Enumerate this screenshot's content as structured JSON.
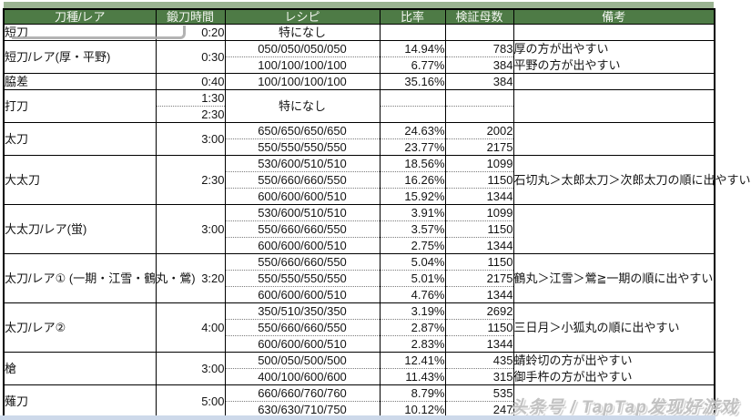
{
  "colors": {
    "header_bg": "#4e7b46",
    "header_text": "#f3f6f0",
    "top_strip": "#9bb492",
    "bottom_strip": "#cdd9ea",
    "grid_border": "#000000",
    "dotted_border": "#7c7c7c",
    "watermark_text": "#bdbdbd"
  },
  "watermark": {
    "text": "头条号 / TapTap发现好游戏"
  },
  "table": {
    "headers": [
      "刀種/レア",
      "鍛刀時間",
      "レシピ",
      "比率",
      "検証母数",
      "備考"
    ],
    "rows": [
      {
        "gs": true,
        "cells": [
          {
            "c": "type",
            "t": "短刀"
          },
          {
            "c": "time",
            "t": "0:20"
          },
          {
            "c": "recipe",
            "t": "特になし"
          },
          {
            "c": "ratio",
            "t": ""
          },
          {
            "c": "count",
            "t": ""
          },
          {
            "c": "note",
            "t": ""
          }
        ]
      },
      {
        "gs": true,
        "cells": [
          {
            "c": "type",
            "t": "短刀/レア(厚・平野)",
            "rs": 2
          },
          {
            "c": "time",
            "t": "0:30",
            "rs": 2
          },
          {
            "c": "recipe",
            "t": "050/050/050/050"
          },
          {
            "c": "ratio",
            "t": "14.94%"
          },
          {
            "c": "count",
            "t": "783"
          },
          {
            "c": "note",
            "t": "厚の方が出やすい"
          }
        ]
      },
      {
        "cells": [
          {
            "c": "recipe",
            "t": "100/100/100/100"
          },
          {
            "c": "ratio",
            "t": "6.77%"
          },
          {
            "c": "count",
            "t": "384"
          },
          {
            "c": "note",
            "t": "平野の方が出やすい"
          }
        ]
      },
      {
        "gs": true,
        "cells": [
          {
            "c": "type",
            "t": "脇差"
          },
          {
            "c": "time",
            "t": "0:40"
          },
          {
            "c": "recipe",
            "t": "100/100/100/100"
          },
          {
            "c": "ratio",
            "t": "35.16%"
          },
          {
            "c": "count",
            "t": "384"
          },
          {
            "c": "note",
            "t": ""
          }
        ]
      },
      {
        "gs": true,
        "cells": [
          {
            "c": "type",
            "t": "打刀",
            "rs": 2
          },
          {
            "c": "time",
            "t": "1:30"
          },
          {
            "c": "recipe",
            "t": "特になし",
            "rs": 2,
            "mid": true
          },
          {
            "c": "ratio",
            "t": ""
          },
          {
            "c": "count",
            "t": ""
          },
          {
            "c": "note",
            "t": "",
            "rs": 2
          }
        ]
      },
      {
        "cells": [
          {
            "c": "time",
            "t": "2:30"
          },
          {
            "c": "ratio",
            "t": ""
          },
          {
            "c": "count",
            "t": ""
          }
        ]
      },
      {
        "gs": true,
        "cells": [
          {
            "c": "type",
            "t": "太刀",
            "rs": 2
          },
          {
            "c": "time",
            "t": "3:00",
            "rs": 2
          },
          {
            "c": "recipe",
            "t": "650/650/650/650"
          },
          {
            "c": "ratio",
            "t": "24.63%"
          },
          {
            "c": "count",
            "t": "2002"
          },
          {
            "c": "note",
            "t": "",
            "rs": 2
          }
        ]
      },
      {
        "cells": [
          {
            "c": "recipe",
            "t": "550/550/550/550"
          },
          {
            "c": "ratio",
            "t": "23.77%"
          },
          {
            "c": "count",
            "t": "2175"
          }
        ]
      },
      {
        "gs": true,
        "cells": [
          {
            "c": "type",
            "t": "大太刀",
            "rs": 3
          },
          {
            "c": "time",
            "t": "2:30",
            "rs": 3
          },
          {
            "c": "recipe",
            "t": "530/600/510/510"
          },
          {
            "c": "ratio",
            "t": "18.56%"
          },
          {
            "c": "count",
            "t": "1099"
          },
          {
            "c": "note",
            "t": "石切丸＞太郎太刀＞次郎太刀の順に出やすい",
            "rs": 3,
            "mid": true
          }
        ]
      },
      {
        "cells": [
          {
            "c": "recipe",
            "t": "550/660/660/550"
          },
          {
            "c": "ratio",
            "t": "16.26%"
          },
          {
            "c": "count",
            "t": "1150"
          }
        ]
      },
      {
        "cells": [
          {
            "c": "recipe",
            "t": "600/600/600/510"
          },
          {
            "c": "ratio",
            "t": "15.92%"
          },
          {
            "c": "count",
            "t": "1344"
          }
        ]
      },
      {
        "gs": true,
        "cells": [
          {
            "c": "type",
            "t": "大太刀/レア(蛍)",
            "rs": 3
          },
          {
            "c": "time",
            "t": "3:00",
            "rs": 3
          },
          {
            "c": "recipe",
            "t": "530/600/510/510"
          },
          {
            "c": "ratio",
            "t": "3.91%"
          },
          {
            "c": "count",
            "t": "1099"
          },
          {
            "c": "note",
            "t": "",
            "rs": 3
          }
        ]
      },
      {
        "cells": [
          {
            "c": "recipe",
            "t": "550/660/660/550"
          },
          {
            "c": "ratio",
            "t": "3.57%"
          },
          {
            "c": "count",
            "t": "1150"
          }
        ]
      },
      {
        "cells": [
          {
            "c": "recipe",
            "t": "600/600/600/510"
          },
          {
            "c": "ratio",
            "t": "2.75%"
          },
          {
            "c": "count",
            "t": "1344"
          }
        ]
      },
      {
        "gs": true,
        "cells": [
          {
            "c": "type",
            "t": "太刀/レア①\n(一期・江雪・鶴丸・鶯)",
            "rs": 3
          },
          {
            "c": "time",
            "t": "3:20",
            "rs": 3
          },
          {
            "c": "recipe",
            "t": "550/660/660/550"
          },
          {
            "c": "ratio",
            "t": "5.04%"
          },
          {
            "c": "count",
            "t": "1150"
          },
          {
            "c": "note",
            "t": "鶴丸＞江雪＞鶯≧一期の順に出やすい",
            "rs": 3,
            "mid": true
          }
        ]
      },
      {
        "cells": [
          {
            "c": "recipe",
            "t": "550/550/550/550"
          },
          {
            "c": "ratio",
            "t": "5.01%"
          },
          {
            "c": "count",
            "t": "2175"
          }
        ]
      },
      {
        "cells": [
          {
            "c": "recipe",
            "t": "600/600/600/510"
          },
          {
            "c": "ratio",
            "t": "4.76%"
          },
          {
            "c": "count",
            "t": "1344"
          }
        ]
      },
      {
        "gs": true,
        "cells": [
          {
            "c": "type",
            "t": "太刀/レア②",
            "rs": 3
          },
          {
            "c": "time",
            "t": "4:00",
            "rs": 3
          },
          {
            "c": "recipe",
            "t": "350/510/350/350"
          },
          {
            "c": "ratio",
            "t": "3.19%"
          },
          {
            "c": "count",
            "t": "2692"
          },
          {
            "c": "note",
            "t": "三日月＞小狐丸の順に出やすい",
            "rs": 3,
            "mid": true
          }
        ]
      },
      {
        "cells": [
          {
            "c": "recipe",
            "t": "550/660/660/550"
          },
          {
            "c": "ratio",
            "t": "2.87%"
          },
          {
            "c": "count",
            "t": "1150"
          }
        ]
      },
      {
        "cells": [
          {
            "c": "recipe",
            "t": "600/600/600/510"
          },
          {
            "c": "ratio",
            "t": "2.83%"
          },
          {
            "c": "count",
            "t": "1344"
          }
        ]
      },
      {
        "gs": true,
        "cells": [
          {
            "c": "type",
            "t": "槍",
            "rs": 2
          },
          {
            "c": "time",
            "t": "3:00",
            "rs": 2
          },
          {
            "c": "recipe",
            "t": "500/050/500/500"
          },
          {
            "c": "ratio",
            "t": "12.41%"
          },
          {
            "c": "count",
            "t": "435"
          },
          {
            "c": "note",
            "t": "蜻蛉切の方が出やすい"
          }
        ]
      },
      {
        "cells": [
          {
            "c": "recipe",
            "t": "400/100/600/600"
          },
          {
            "c": "ratio",
            "t": "11.43%"
          },
          {
            "c": "count",
            "t": "315"
          },
          {
            "c": "note",
            "t": "御手杵の方が出やすい"
          }
        ]
      },
      {
        "gs": true,
        "cells": [
          {
            "c": "type",
            "t": "薙刀",
            "rs": 2
          },
          {
            "c": "time",
            "t": "5:00",
            "rs": 2
          },
          {
            "c": "recipe",
            "t": "660/660/760/760"
          },
          {
            "c": "ratio",
            "t": "8.79%"
          },
          {
            "c": "count",
            "t": "535"
          },
          {
            "c": "note",
            "t": "",
            "rs": 2
          }
        ]
      },
      {
        "cells": [
          {
            "c": "recipe",
            "t": "630/630/710/750"
          },
          {
            "c": "ratio",
            "t": "10.12%"
          },
          {
            "c": "count",
            "t": "247"
          }
        ]
      }
    ]
  }
}
